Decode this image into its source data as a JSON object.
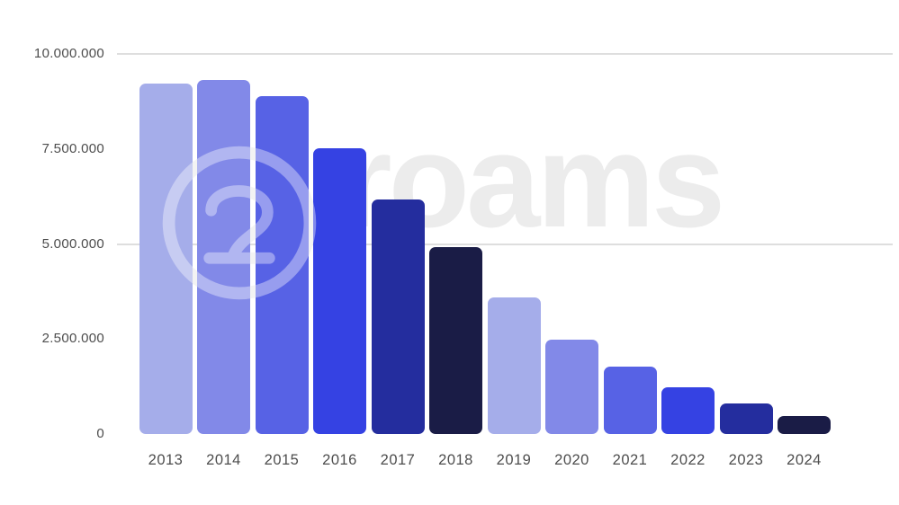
{
  "watermark": {
    "text": "roams",
    "logo_icon": "roams-circle-logo",
    "text_color": "#ececec"
  },
  "chart_data": {
    "type": "bar",
    "title": "",
    "xlabel": "",
    "ylabel": "",
    "legend": "none",
    "background": "#ffffff",
    "categories": [
      "2013",
      "2014",
      "2015",
      "2016",
      "2017",
      "2018",
      "2019",
      "2020",
      "2021",
      "2022",
      "2023",
      "2024"
    ],
    "values": [
      9220000,
      9320000,
      8890000,
      7520000,
      6170000,
      4920000,
      3590000,
      2480000,
      1770000,
      1230000,
      800000,
      470000
    ],
    "bar_colors": [
      "#a5adea",
      "#8289e8",
      "#5762e5",
      "#3542e3",
      "#242d9e",
      "#1a1c46",
      "#a5adea",
      "#8289e8",
      "#5762e5",
      "#3542e3",
      "#242d9e",
      "#1a1c46"
    ],
    "ylim": [
      0,
      10000000
    ],
    "ytick_values": [
      0,
      2500000,
      5000000,
      7500000,
      10000000
    ],
    "ytick_labels": [
      "0",
      "2.500.000",
      "5.000.000",
      "7.500.000",
      "10.000.000"
    ],
    "gridline_values": [
      5000000,
      10000000
    ],
    "grid_color": "#dedede",
    "axis_label_color": "#4d4d4d"
  }
}
